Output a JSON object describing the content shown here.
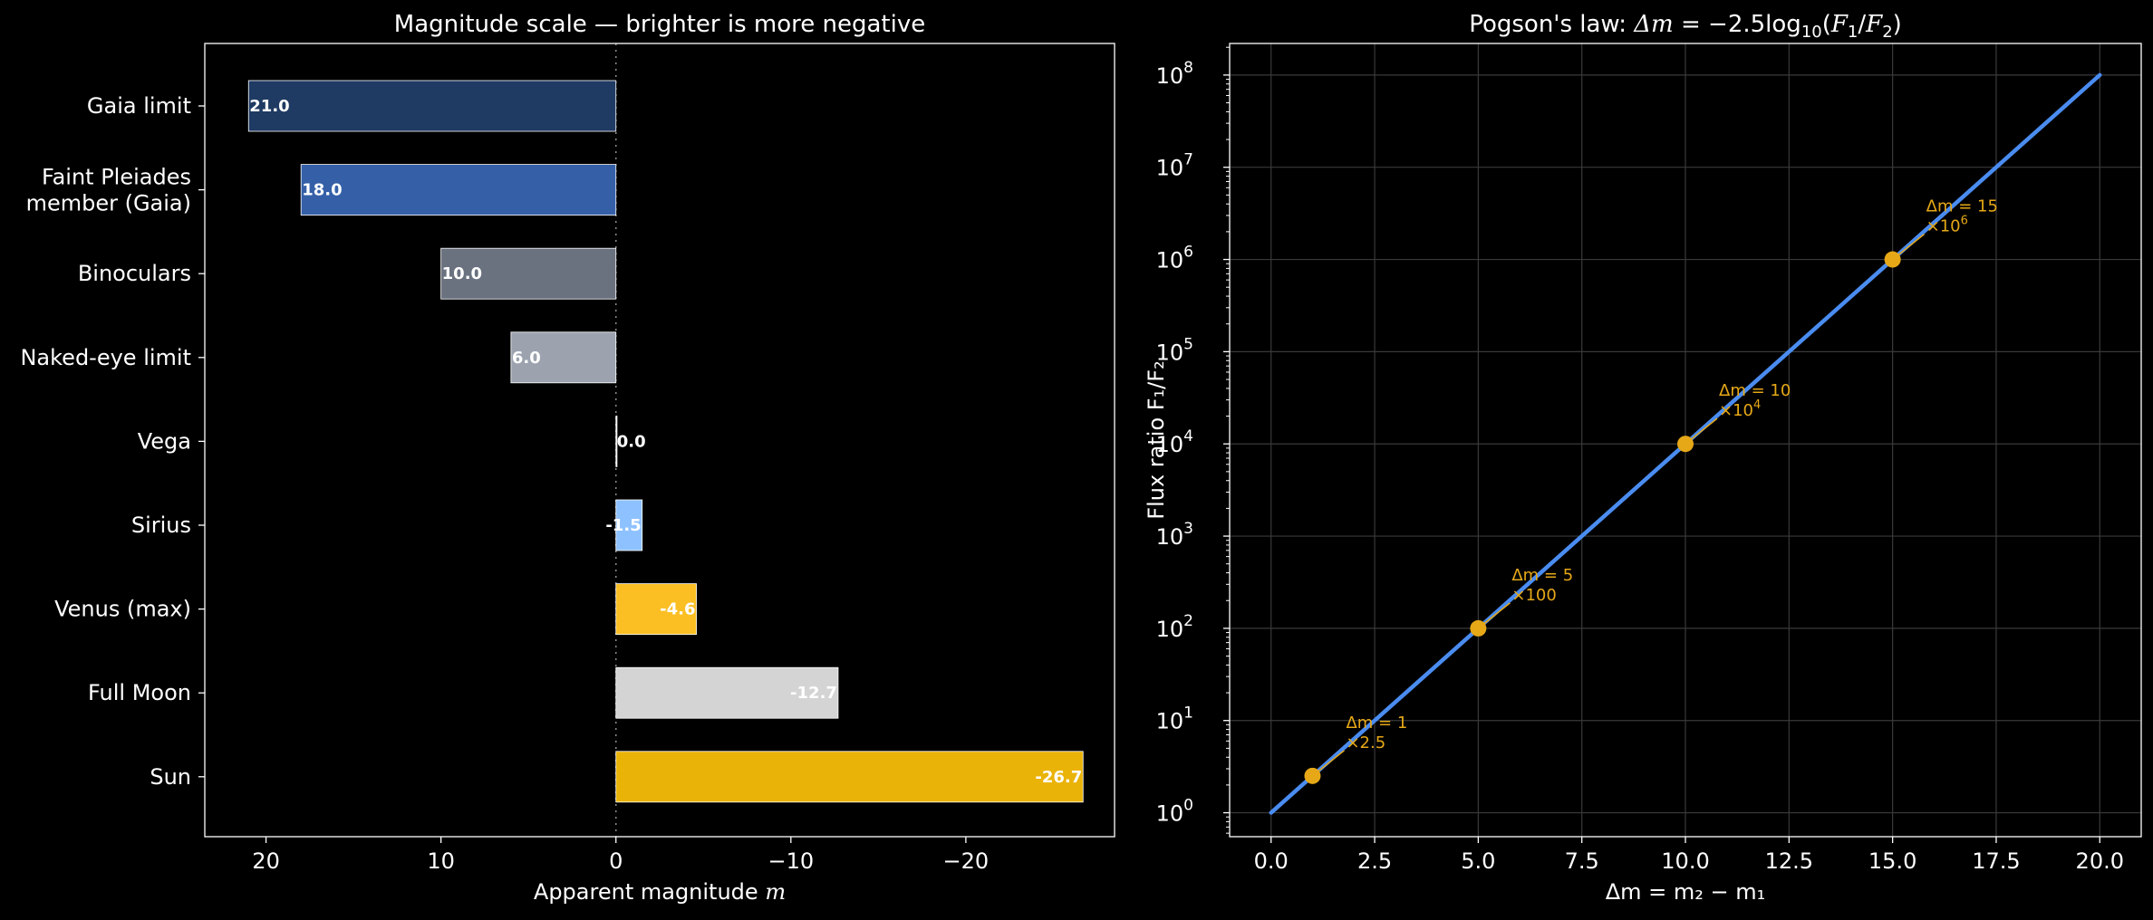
{
  "chart_data": [
    {
      "type": "bar",
      "orientation": "horizontal",
      "title": "Magnitude scale — brighter is more negative",
      "xlabel": "Apparent magnitude m",
      "xlabel_parts": [
        "Apparent magnitude ",
        "m"
      ],
      "x_inverted": true,
      "xlim": [
        23.5,
        -28.5
      ],
      "x_ticks": [
        20,
        10,
        0,
        -10,
        -20
      ],
      "x_tick_labels": [
        "20",
        "10",
        "0",
        "−10",
        "−20"
      ],
      "categories": [
        "Gaia limit",
        "Faint Pleiades member (Gaia)",
        "Binoculars",
        "Naked-eye limit",
        "Vega",
        "Sirius",
        "Venus (max)",
        "Full Moon",
        "Sun"
      ],
      "category_lines": [
        [
          "Gaia limit"
        ],
        [
          "Faint Pleiades",
          "member (Gaia)"
        ],
        [
          "Binoculars"
        ],
        [
          "Naked-eye limit"
        ],
        [
          "Vega"
        ],
        [
          "Sirius"
        ],
        [
          "Venus (max)"
        ],
        [
          "Full Moon"
        ],
        [
          "Sun"
        ]
      ],
      "values": [
        21.0,
        18.0,
        10.0,
        6.0,
        0.0,
        -1.5,
        -4.6,
        -12.7,
        -26.7
      ],
      "value_labels": [
        "21.0",
        "18.0",
        "10.0",
        "6.0",
        "0.0",
        "-1.5",
        "-4.6",
        "-12.7",
        "-26.7"
      ],
      "bar_colors": [
        "#1f3a63",
        "#3560a8",
        "#6a7280",
        "#9ca3af",
        "#f0f0f0",
        "#8ec1ff",
        "#fbbf24",
        "#d4d4d4",
        "#eab308"
      ],
      "reference_line_at": 0
    },
    {
      "type": "line",
      "title": "Pogson's law: Δm = −2.5log₁₀(F₁/F₂)",
      "title_parts": [
        "Pogson's law: ",
        "Δm",
        " = −2.5log",
        "10",
        "(",
        "F",
        "1",
        "/",
        "F",
        "2",
        ")"
      ],
      "xlabel": "Δm = m₂ − m₁",
      "ylabel": "Flux ratio F₁/F₂",
      "y_scale": "log",
      "xlim": [
        -1.0,
        21.0
      ],
      "ylim": [
        0.55,
        220000000.0
      ],
      "x_ticks": [
        0,
        2.5,
        5,
        7.5,
        10,
        12.5,
        15,
        17.5,
        20
      ],
      "x_tick_labels": [
        "0.0",
        "2.5",
        "5.0",
        "7.5",
        "10.0",
        "12.5",
        "15.0",
        "17.5",
        "20.0"
      ],
      "y_tick_exponents": [
        0,
        1,
        2,
        3,
        4,
        5,
        6,
        7,
        8
      ],
      "y_tick_base": "10",
      "grid": true,
      "line_color": "#4a8cf0",
      "series": [
        {
          "x": [
            0,
            20
          ],
          "y": [
            1,
            100000000
          ]
        }
      ],
      "highlight_points": [
        {
          "x": 1,
          "y": 2.512,
          "label_line1": "Δm = 1",
          "label_line2": "×2.5",
          "sup": ""
        },
        {
          "x": 5,
          "y": 100,
          "label_line1": "Δm = 5",
          "label_line2": "×100",
          "sup": ""
        },
        {
          "x": 10,
          "y": 10000,
          "label_line1": "Δm = 10",
          "label_line2": "×10",
          "sup": "4"
        },
        {
          "x": 15,
          "y": 1000000,
          "label_line1": "Δm = 15",
          "label_line2": "×10",
          "sup": "6"
        }
      ],
      "point_color": "#e6a817"
    }
  ]
}
